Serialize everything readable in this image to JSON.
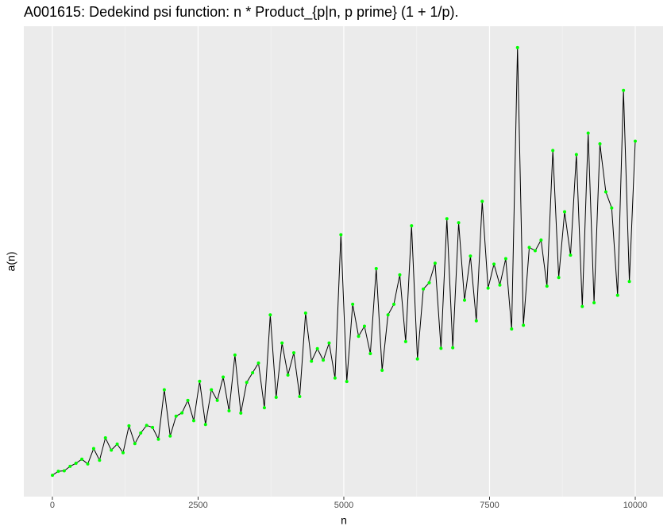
{
  "chart_data": {
    "type": "line",
    "title": "A001615: Dedekind psi function: n * Product_{p|n, p prime} (1 + 1/p).",
    "x_label": "n",
    "y_label": "a(n)",
    "x": [
      1,
      102,
      203,
      304,
      405,
      506,
      607,
      708,
      809,
      910,
      1011,
      1112,
      1213,
      1314,
      1415,
      1516,
      1617,
      1718,
      1819,
      1920,
      2021,
      2122,
      2223,
      2324,
      2425,
      2526,
      2627,
      2728,
      2829,
      2930,
      3031,
      3132,
      3233,
      3334,
      3435,
      3536,
      3637,
      3738,
      3839,
      3940,
      4041,
      4142,
      4243,
      4344,
      4445,
      4546,
      4647,
      4748,
      4849,
      4950,
      5051,
      5152,
      5253,
      5354,
      5455,
      5556,
      5657,
      5758,
      5859,
      5960,
      6061,
      6162,
      6263,
      6364,
      6465,
      6566,
      6667,
      6768,
      6869,
      6970,
      7071,
      7172,
      7273,
      7374,
      7475,
      7576,
      7677,
      7778,
      7879,
      7980,
      8081,
      8182,
      8283,
      8384,
      8485,
      8586,
      8687,
      8788,
      8889,
      8990,
      9091,
      9192,
      9293,
      9394,
      9495,
      9596,
      9697,
      9798,
      9899,
      10000
    ],
    "values": [
      1,
      216,
      240,
      480,
      648,
      864,
      608,
      1440,
      810,
      2016,
      1352,
      1680,
      1214,
      2664,
      1704,
      2280,
      2688,
      2580,
      1944,
      4608,
      2112,
      3186,
      3360,
      4032,
      2940,
      5064,
      2736,
      4608,
      4032,
      5292,
      3472,
      6480,
      3348,
      5004,
      5520,
      6048,
      3638,
      8640,
      4200,
      7128,
      5400,
      6600,
      4244,
      8736,
      6144,
      6822,
      6200,
      7128,
      5236,
      12960,
      5052,
      9216,
      7488,
      8034,
      6552,
      11136,
      5658,
      8640,
      9216,
      10800,
      7200,
      13440,
      6264,
      10032,
      10368,
      11424,
      6840,
      13824,
      6870,
      13608,
      9432,
      11808,
      8320,
      14760,
      10080,
      11376,
      10248,
      11670,
      7880,
      23040,
      8082,
      12276,
      12096,
      12672,
      10188,
      17496,
      10656,
      14196,
      11856,
      17280,
      9092,
      18432,
      9294,
      17856,
      15264,
      14400,
      9698,
      20736,
      10440,
      18000
    ],
    "line_color": "#000000",
    "point_color": "#00ff00",
    "xlim": [
      -490,
      10477
    ],
    "ylim": [
      -1151,
      24192
    ],
    "xticks": [
      0,
      2500,
      5000,
      7500,
      10000
    ],
    "x_minor_ticks": [
      1250,
      3750,
      6250,
      8750
    ],
    "grid": true
  }
}
